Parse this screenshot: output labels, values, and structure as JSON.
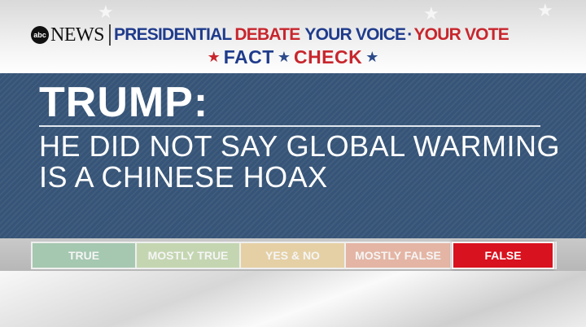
{
  "header": {
    "network_logo_text": "abc",
    "network_name": "NEWS",
    "title_words": [
      {
        "text": "PRESIDENTIAL",
        "color": "#1f3b8c"
      },
      {
        "text": "DEBATE",
        "color": "#c8262d"
      },
      {
        "text": "YOUR VOICE",
        "color": "#1f3b8c"
      },
      {
        "text": "·",
        "color": "#1f3b8c"
      },
      {
        "text": "YOUR VOTE",
        "color": "#c8262d"
      }
    ],
    "segment_title": {
      "first": "FACT",
      "second": "CHECK"
    }
  },
  "claim": {
    "speaker": "TRUMP:",
    "quote": "HE DID NOT SAY GLOBAL WARMING IS A CHINESE HOAX"
  },
  "rating_meter": {
    "selected": "FALSE",
    "options": [
      {
        "label": "TRUE",
        "color": "#2f8a4b"
      },
      {
        "label": "MOSTLY TRUE",
        "color": "#7fae4e"
      },
      {
        "label": "YES & NO",
        "color": "#d6a02e"
      },
      {
        "label": "MOSTLY FALSE",
        "color": "#d45a2c"
      },
      {
        "label": "FALSE",
        "color": "#d8121e"
      }
    ]
  },
  "colors": {
    "panel_bg": "#365477",
    "brand_blue": "#1f3b8c",
    "brand_red": "#c8262d"
  }
}
